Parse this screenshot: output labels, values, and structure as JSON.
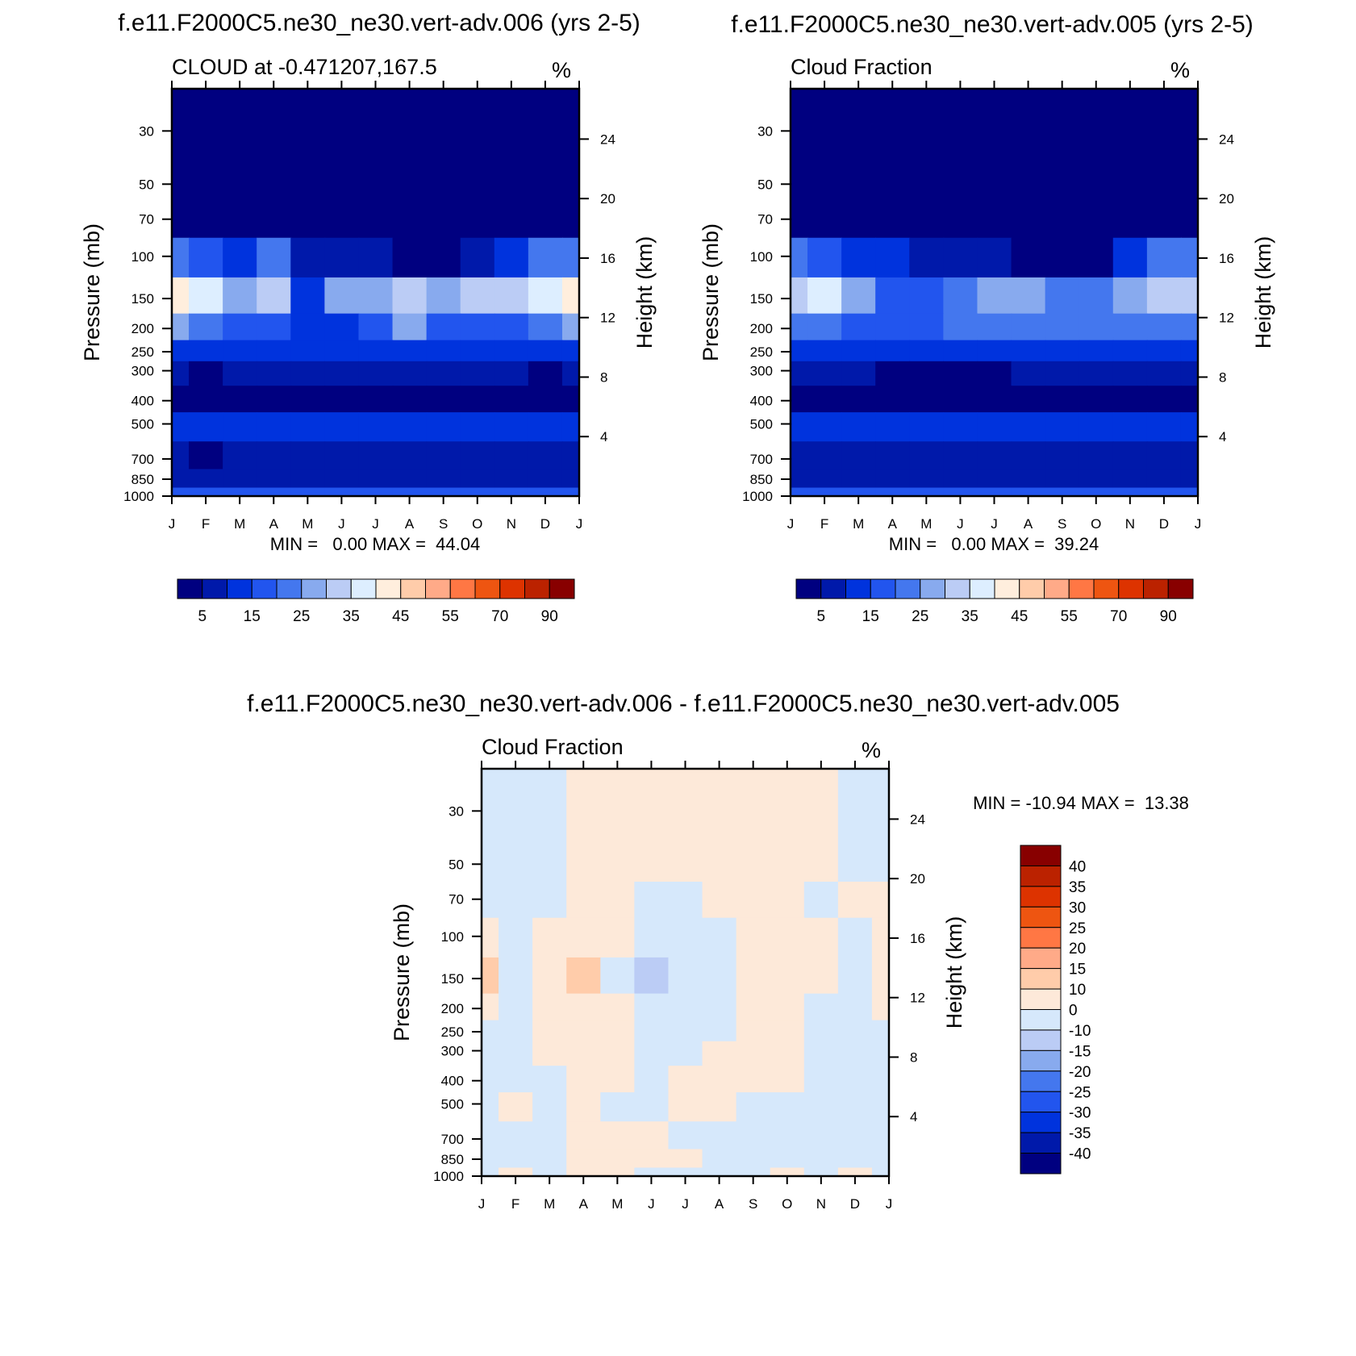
{
  "page": {
    "top_left_title": "f.e11.F2000C5.ne30_ne30.vert-adv.006 (yrs 2-5)",
    "top_right_title": "f.e11.F2000C5.ne30_ne30.vert-adv.005 (yrs 2-5)",
    "bottom_title": "f.e11.F2000C5.ne30_ne30.vert-adv.006 - f.e11.F2000C5.ne30_ne30.vert-adv.005"
  },
  "colors": {
    "abs_scale": [
      "#000080",
      "#0019AA",
      "#0033DD",
      "#2255EE",
      "#4477EE",
      "#88AAEE",
      "#BBCCF5",
      "#DDEEFF",
      "#FFEEDD",
      "#FFCCAA",
      "#FFAA88",
      "#FF7744",
      "#EE5511",
      "#DD3300",
      "#BB2200",
      "#880000"
    ],
    "diff_scale": [
      "#000080",
      "#0019AA",
      "#0033DD",
      "#2255EE",
      "#4477EE",
      "#88AAEE",
      "#BBCCF5",
      "#D6E8FB",
      "#FDE9D9",
      "#FFCCAA",
      "#FFAA88",
      "#FF7744",
      "#EE5511",
      "#DD3300",
      "#BB2200",
      "#880000"
    ]
  },
  "chart_data": [
    {
      "type": "heatmap",
      "title": "CLOUD at -0.471207,167.5",
      "units": "%",
      "ylabel": "Pressure (mb)",
      "ylabel_right": "Height (km)",
      "x": [
        "J",
        "F",
        "M",
        "A",
        "M",
        "J",
        "J",
        "A",
        "S",
        "O",
        "N",
        "D",
        "J"
      ],
      "y_ticks": [
        "30",
        "50",
        "70",
        "100",
        "150",
        "200",
        "250",
        "300",
        "400",
        "500",
        "700",
        "850",
        "1000"
      ],
      "y_ticks_right": [
        "24",
        "20",
        "16",
        "12",
        "8",
        "4"
      ],
      "stats": "MIN =   0.00 MAX =  44.04",
      "min": 0.0,
      "max": 44.04,
      "colorbar_labels": [
        "5",
        "15",
        "25",
        "35",
        "45",
        "55",
        "70",
        "90"
      ],
      "levels": [
        30,
        50,
        70,
        100,
        150,
        200,
        250,
        300,
        400,
        500,
        700,
        850,
        1000
      ],
      "z": [
        [
          0,
          0,
          0,
          0,
          0,
          0,
          0,
          0,
          0,
          0,
          0,
          0,
          0
        ],
        [
          0,
          0,
          0,
          0,
          0,
          0,
          0,
          0,
          0,
          0,
          0,
          0,
          0
        ],
        [
          1,
          1,
          1,
          1,
          0,
          0,
          0,
          0,
          0,
          0,
          1,
          1,
          1
        ],
        [
          22,
          16,
          12,
          20,
          6,
          8,
          5,
          3,
          4,
          6,
          12,
          22,
          22
        ],
        [
          41,
          35,
          26,
          31,
          12,
          25,
          25,
          30,
          26,
          30,
          31,
          35,
          41
        ],
        [
          27,
          22,
          17,
          15,
          12,
          14,
          18,
          26,
          19,
          18,
          19,
          22,
          27
        ],
        [
          14,
          12,
          11,
          10,
          10,
          10,
          11,
          12,
          11,
          10,
          10,
          11,
          14
        ],
        [
          6,
          4,
          5,
          5,
          6,
          5,
          6,
          7,
          5,
          5,
          5,
          4,
          6
        ],
        [
          3,
          2,
          2,
          3,
          3,
          2,
          3,
          4,
          3,
          3,
          3,
          3,
          3
        ],
        [
          11,
          10,
          10,
          12,
          11,
          11,
          12,
          11,
          12,
          12,
          11,
          10,
          11
        ],
        [
          6,
          4,
          8,
          8,
          8,
          8,
          7,
          6,
          5,
          5,
          5,
          7,
          6
        ],
        [
          7,
          8,
          8,
          9,
          6,
          8,
          9,
          8,
          7,
          7,
          7,
          8,
          7
        ],
        [
          15,
          16,
          15,
          15,
          15,
          15,
          15,
          15,
          15,
          15,
          15,
          16,
          15
        ]
      ]
    },
    {
      "type": "heatmap",
      "title": "Cloud Fraction",
      "units": "%",
      "ylabel": "Pressure (mb)",
      "ylabel_right": "Height (km)",
      "x": [
        "J",
        "F",
        "M",
        "A",
        "M",
        "J",
        "J",
        "A",
        "S",
        "O",
        "N",
        "D",
        "J"
      ],
      "y_ticks": [
        "30",
        "50",
        "70",
        "100",
        "150",
        "200",
        "250",
        "300",
        "400",
        "500",
        "700",
        "850",
        "1000"
      ],
      "y_ticks_right": [
        "24",
        "20",
        "16",
        "12",
        "8",
        "4"
      ],
      "stats": "MIN =   0.00 MAX =  39.24",
      "min": 0.0,
      "max": 39.24,
      "colorbar_labels": [
        "5",
        "15",
        "25",
        "35",
        "45",
        "55",
        "70",
        "90"
      ],
      "levels": [
        30,
        50,
        70,
        100,
        150,
        200,
        250,
        300,
        400,
        500,
        700,
        850,
        1000
      ],
      "z": [
        [
          0,
          0,
          0,
          0,
          0,
          0,
          0,
          0,
          0,
          0,
          0,
          0,
          0
        ],
        [
          0,
          0,
          0,
          0,
          0,
          0,
          0,
          0,
          0,
          0,
          0,
          0,
          0
        ],
        [
          1,
          1,
          1,
          1,
          0,
          0,
          0,
          0,
          0,
          0,
          0,
          1,
          1
        ],
        [
          20,
          16,
          12,
          12,
          8,
          6,
          5,
          4,
          4,
          4,
          10,
          20,
          20
        ],
        [
          30,
          36,
          26,
          17,
          15,
          20,
          28,
          25,
          22,
          22,
          25,
          30,
          30
        ],
        [
          24,
          20,
          15,
          15,
          16,
          20,
          22,
          20,
          20,
          20,
          20,
          24,
          24
        ],
        [
          14,
          11,
          10,
          10,
          10,
          11,
          12,
          11,
          11,
          10,
          11,
          13,
          14
        ],
        [
          6,
          5,
          5,
          4,
          4,
          4,
          4,
          5,
          5,
          5,
          5,
          5,
          6
        ],
        [
          4,
          3,
          3,
          3,
          3,
          3,
          4,
          4,
          4,
          4,
          4,
          4,
          4
        ],
        [
          12,
          11,
          12,
          11,
          11,
          11,
          11,
          12,
          12,
          11,
          11,
          11,
          12
        ],
        [
          6,
          6,
          6,
          6,
          5,
          6,
          6,
          6,
          6,
          5,
          6,
          7,
          6
        ],
        [
          7,
          8,
          8,
          8,
          6,
          8,
          8,
          8,
          8,
          6,
          7,
          8,
          7
        ],
        [
          15,
          16,
          15,
          15,
          15,
          15,
          15,
          15,
          15,
          15,
          15,
          16,
          15
        ]
      ]
    },
    {
      "type": "heatmap",
      "title": "Cloud Fraction",
      "units": "%",
      "ylabel": "Pressure (mb)",
      "ylabel_right": "Height (km)",
      "x": [
        "J",
        "F",
        "M",
        "A",
        "M",
        "J",
        "J",
        "A",
        "S",
        "O",
        "N",
        "D",
        "J"
      ],
      "y_ticks": [
        "30",
        "50",
        "70",
        "100",
        "150",
        "200",
        "250",
        "300",
        "400",
        "500",
        "700",
        "850",
        "1000"
      ],
      "y_ticks_right": [
        "24",
        "20",
        "16",
        "12",
        "8",
        "4"
      ],
      "stats": "MIN = -10.94 MAX =  13.38",
      "min": -10.94,
      "max": 13.38,
      "colorbar_labels": [
        "40",
        "35",
        "30",
        "25",
        "20",
        "15",
        "10",
        "0",
        "-10",
        "-15",
        "-20",
        "-25",
        "-30",
        "-35",
        "-40"
      ],
      "levels": [
        30,
        50,
        70,
        100,
        150,
        200,
        250,
        300,
        400,
        500,
        700,
        850,
        1000
      ],
      "z": [
        [
          -1,
          -1,
          -1,
          1,
          1,
          1,
          1,
          1,
          1,
          1,
          1,
          -1,
          -1
        ],
        [
          -1,
          -1,
          -1,
          1,
          1,
          1,
          1,
          1,
          1,
          1,
          1,
          -1,
          -1
        ],
        [
          -1,
          -1,
          -1,
          1,
          1,
          -1,
          -1,
          1,
          1,
          1,
          -1,
          1,
          1
        ],
        [
          1,
          -1,
          1,
          1,
          1,
          -1,
          -1,
          -1,
          1,
          1,
          1,
          -1,
          1
        ],
        [
          11,
          -1,
          1,
          12,
          -1,
          -11,
          -1,
          -1,
          1,
          1,
          1,
          -1,
          1
        ],
        [
          1,
          -1,
          1,
          1,
          1,
          -1,
          -1,
          -1,
          1,
          1,
          -1,
          -1,
          1
        ],
        [
          -1,
          -1,
          1,
          1,
          1,
          -1,
          -1,
          -1,
          1,
          1,
          -1,
          -1,
          -1
        ],
        [
          -1,
          -1,
          1,
          1,
          1,
          -1,
          -1,
          1,
          1,
          1,
          -1,
          -1,
          -1
        ],
        [
          -1,
          -1,
          -1,
          1,
          1,
          -1,
          1,
          1,
          1,
          1,
          -1,
          -1,
          -1
        ],
        [
          -1,
          1,
          -1,
          1,
          -1,
          -1,
          1,
          1,
          -1,
          -1,
          -1,
          -1,
          -1
        ],
        [
          -1,
          -1,
          -1,
          1,
          1,
          1,
          -1,
          -1,
          -1,
          -1,
          -1,
          -1,
          -1
        ],
        [
          -1,
          -1,
          -1,
          1,
          1,
          1,
          1,
          -1,
          -1,
          -1,
          -1,
          -1,
          -1
        ],
        [
          -1,
          1,
          -1,
          1,
          1,
          -1,
          -1,
          -1,
          -1,
          1,
          -1,
          1,
          -1
        ]
      ]
    }
  ]
}
